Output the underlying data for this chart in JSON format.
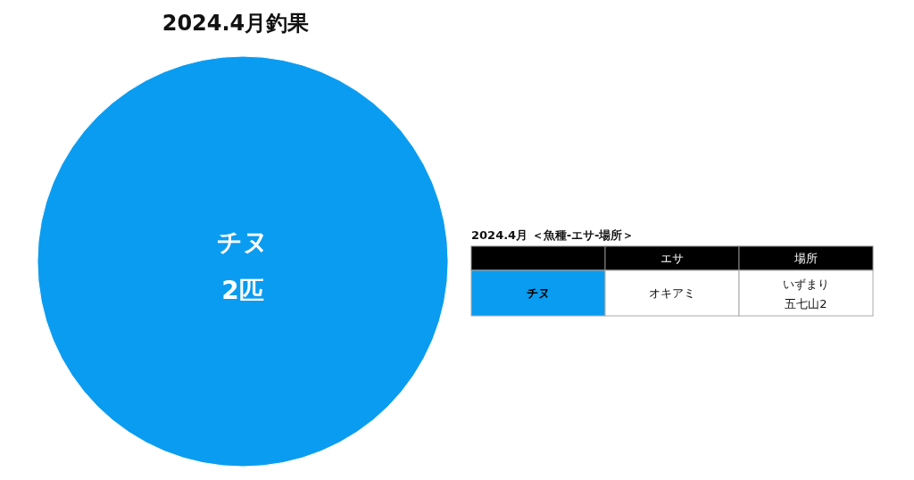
{
  "chart_data": [
    {
      "type": "pie",
      "title": "2024.4月釣果",
      "categories": [
        "チヌ"
      ],
      "values": [
        2
      ],
      "colors": [
        "#0a9cf0"
      ],
      "value_labels": [
        "2匹"
      ]
    },
    {
      "type": "other",
      "title": "2024.4月 ＜魚種-エサ-場所＞",
      "annotations": [
        "エサ",
        "場所",
        "チヌ",
        "オキアミ",
        "いずまり",
        "五七山2"
      ]
    }
  ]
}
